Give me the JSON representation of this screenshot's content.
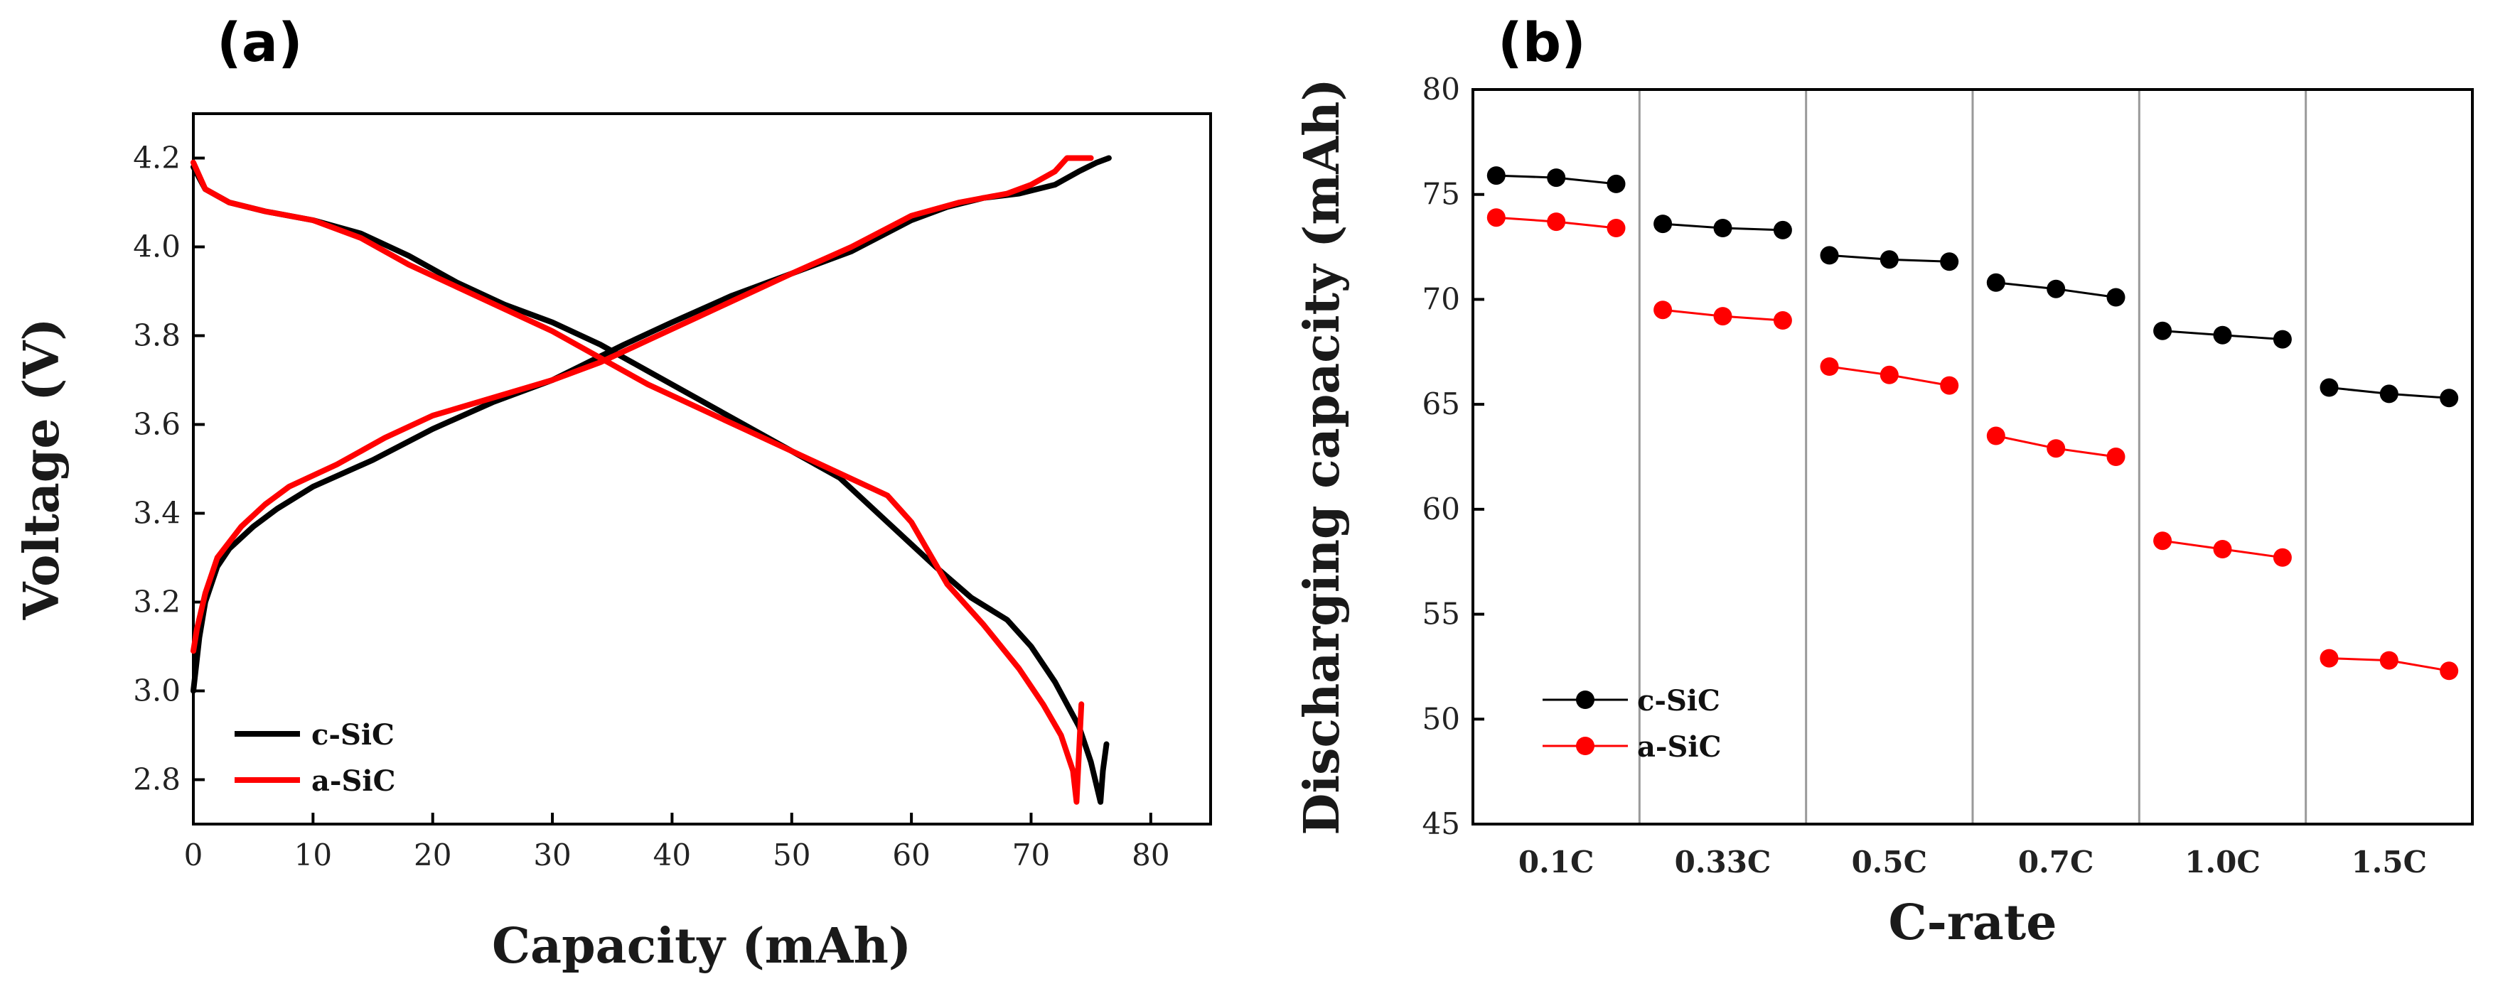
{
  "chart_data": [
    {
      "panel": "(a)",
      "type": "line",
      "xlabel": "Capacity (mAh)",
      "ylabel": "Voltage (V)",
      "xlim": [
        0,
        85
      ],
      "ylim": [
        2.7,
        4.3
      ],
      "xticks": [
        "0",
        "10",
        "20",
        "30",
        "40",
        "50",
        "60",
        "70",
        "80"
      ],
      "yticks": [
        "2.8",
        "3.0",
        "3.2",
        "3.4",
        "3.6",
        "3.8",
        "4.0",
        "4.2"
      ],
      "legend_position": "bottom-left",
      "series": [
        {
          "name": "c-SiC",
          "color": "#000000",
          "charge": {
            "x": [
              0,
              0.5,
              1,
              2,
              3,
              5,
              7,
              10,
              15,
              20,
              25,
              30,
              33,
              36,
              40,
              45,
              50,
              55,
              60,
              63,
              66,
              69,
              72,
              74,
              75.5,
              76.5
            ],
            "y": [
              3.0,
              3.12,
              3.2,
              3.28,
              3.32,
              3.37,
              3.41,
              3.46,
              3.52,
              3.59,
              3.65,
              3.7,
              3.74,
              3.78,
              3.83,
              3.89,
              3.94,
              3.99,
              4.06,
              4.09,
              4.11,
              4.12,
              4.14,
              4.17,
              4.19,
              4.2
            ]
          },
          "discharge": {
            "x": [
              0,
              1,
              3,
              6,
              10,
              14,
              18,
              22,
              26,
              30,
              34,
              38,
              42,
              46,
              50,
              54,
              58,
              62,
              65,
              68,
              70,
              72,
              74,
              75,
              75.8,
              76,
              76.3
            ],
            "y": [
              4.18,
              4.13,
              4.1,
              4.08,
              4.06,
              4.03,
              3.98,
              3.92,
              3.87,
              3.83,
              3.78,
              3.72,
              3.66,
              3.6,
              3.54,
              3.48,
              3.38,
              3.28,
              3.21,
              3.16,
              3.1,
              3.02,
              2.92,
              2.84,
              2.75,
              2.82,
              2.88
            ]
          }
        },
        {
          "name": "a-SiC",
          "color": "#ff0000",
          "charge": {
            "x": [
              0,
              0.3,
              1,
              2,
              4,
              6,
              8,
              12,
              16,
              20,
              25,
              30,
              34,
              38,
              42,
              46,
              50,
              55,
              60,
              64,
              68,
              70,
              72,
              73,
              75
            ],
            "y": [
              3.09,
              3.14,
              3.22,
              3.3,
              3.37,
              3.42,
              3.46,
              3.51,
              3.57,
              3.62,
              3.66,
              3.7,
              3.74,
              3.79,
              3.84,
              3.89,
              3.94,
              4.0,
              4.07,
              4.1,
              4.12,
              4.14,
              4.17,
              4.2,
              4.2
            ]
          },
          "discharge": {
            "x": [
              0,
              1,
              3,
              6,
              10,
              14,
              18,
              22,
              26,
              30,
              34,
              38,
              42,
              46,
              50,
              54,
              58,
              60,
              63,
              66,
              69,
              71,
              72.5,
              73.5,
              73.8,
              74,
              74.2
            ],
            "y": [
              4.19,
              4.13,
              4.1,
              4.08,
              4.06,
              4.02,
              3.96,
              3.91,
              3.86,
              3.81,
              3.75,
              3.69,
              3.64,
              3.59,
              3.54,
              3.49,
              3.44,
              3.38,
              3.24,
              3.15,
              3.05,
              2.97,
              2.9,
              2.82,
              2.75,
              2.86,
              2.97
            ]
          }
        }
      ]
    },
    {
      "panel": "(b)",
      "type": "scatter",
      "xlabel": "C-rate",
      "ylabel": "Discharging capacity (mAh)",
      "ylim": [
        45,
        80
      ],
      "yticks": [
        "45",
        "50",
        "55",
        "60",
        "65",
        "70",
        "75",
        "80"
      ],
      "categories": [
        "0.1C",
        "0.33C",
        "0.5C",
        "0.7C",
        "1.0C",
        "1.5C"
      ],
      "points_per_category": 3,
      "legend_position": "bottom-left",
      "series": [
        {
          "name": "c-SiC",
          "color": "#000000",
          "values": [
            [
              75.9,
              75.8,
              75.5
            ],
            [
              73.6,
              73.4,
              73.3
            ],
            [
              72.1,
              71.9,
              71.8
            ],
            [
              70.8,
              70.5,
              70.1
            ],
            [
              68.5,
              68.3,
              68.1
            ],
            [
              65.8,
              65.5,
              65.3
            ]
          ]
        },
        {
          "name": "a-SiC",
          "color": "#ff0000",
          "values": [
            [
              73.9,
              73.7,
              73.4
            ],
            [
              69.5,
              69.2,
              69.0
            ],
            [
              66.8,
              66.4,
              65.9
            ],
            [
              63.5,
              62.9,
              62.5
            ],
            [
              58.5,
              58.1,
              57.7
            ],
            [
              52.9,
              52.8,
              52.3
            ]
          ]
        }
      ]
    }
  ]
}
